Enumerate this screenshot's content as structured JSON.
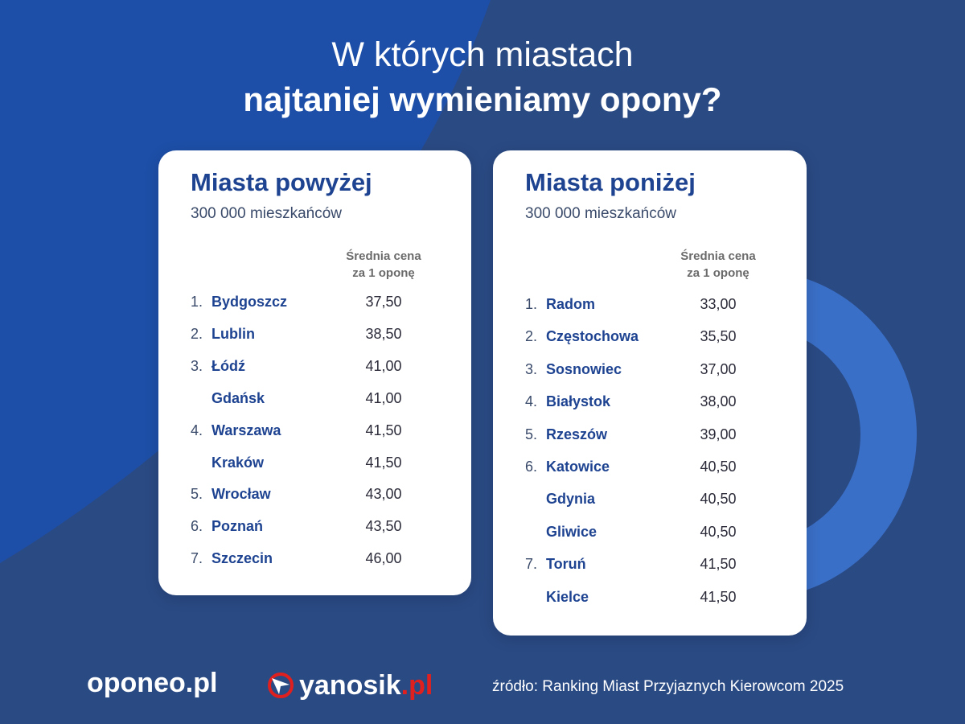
{
  "title": {
    "line1": "W których miastach",
    "line2": "najtaniej wymieniamy opony?"
  },
  "cards": [
    {
      "heading": "Miasta powyżej",
      "subheading": "300 000 mieszkańców",
      "column_header_line1": "Średnia cena",
      "column_header_line2": "za 1 oponę",
      "rows": [
        {
          "rank": "1.",
          "city": "Bydgoszcz",
          "price": "37,50"
        },
        {
          "rank": "2.",
          "city": "Lublin",
          "price": "38,50"
        },
        {
          "rank": "3.",
          "city": "Łódź",
          "price": "41,00"
        },
        {
          "rank": "",
          "city": "Gdańsk",
          "price": "41,00"
        },
        {
          "rank": "4.",
          "city": "Warszawa",
          "price": "41,50"
        },
        {
          "rank": "",
          "city": "Kraków",
          "price": "41,50"
        },
        {
          "rank": "5.",
          "city": "Wrocław",
          "price": "43,00"
        },
        {
          "rank": "6.",
          "city": "Poznań",
          "price": "43,50"
        },
        {
          "rank": "7.",
          "city": "Szczecin",
          "price": "46,00"
        }
      ]
    },
    {
      "heading": "Miasta poniżej",
      "subheading": "300 000 mieszkańców",
      "column_header_line1": "Średnia cena",
      "column_header_line2": "za 1 oponę",
      "rows": [
        {
          "rank": "1.",
          "city": "Radom",
          "price": "33,00"
        },
        {
          "rank": "2.",
          "city": "Częstochowa",
          "price": "35,50"
        },
        {
          "rank": "3.",
          "city": "Sosnowiec",
          "price": "37,00"
        },
        {
          "rank": "4.",
          "city": "Białystok",
          "price": "38,00"
        },
        {
          "rank": "5.",
          "city": "Rzeszów",
          "price": "39,00"
        },
        {
          "rank": "6.",
          "city": "Katowice",
          "price": "40,50"
        },
        {
          "rank": "",
          "city": "Gdynia",
          "price": "40,50"
        },
        {
          "rank": "",
          "city": "Gliwice",
          "price": "40,50"
        },
        {
          "rank": "7.",
          "city": "Toruń",
          "price": "41,50"
        },
        {
          "rank": "",
          "city": "Kielce",
          "price": "41,50"
        }
      ]
    }
  ],
  "footer": {
    "logo_oponeo": "oponeo.pl",
    "logo_yanosik_name": "yanosik",
    "logo_yanosik_tld": ".pl",
    "source": "źródło: Ranking Miast Przyjaznych Kierowcom 2025"
  },
  "colors": {
    "background": "#2a4a84",
    "accent_blue": "#1e4391",
    "yanosik_red": "#e0201e"
  }
}
